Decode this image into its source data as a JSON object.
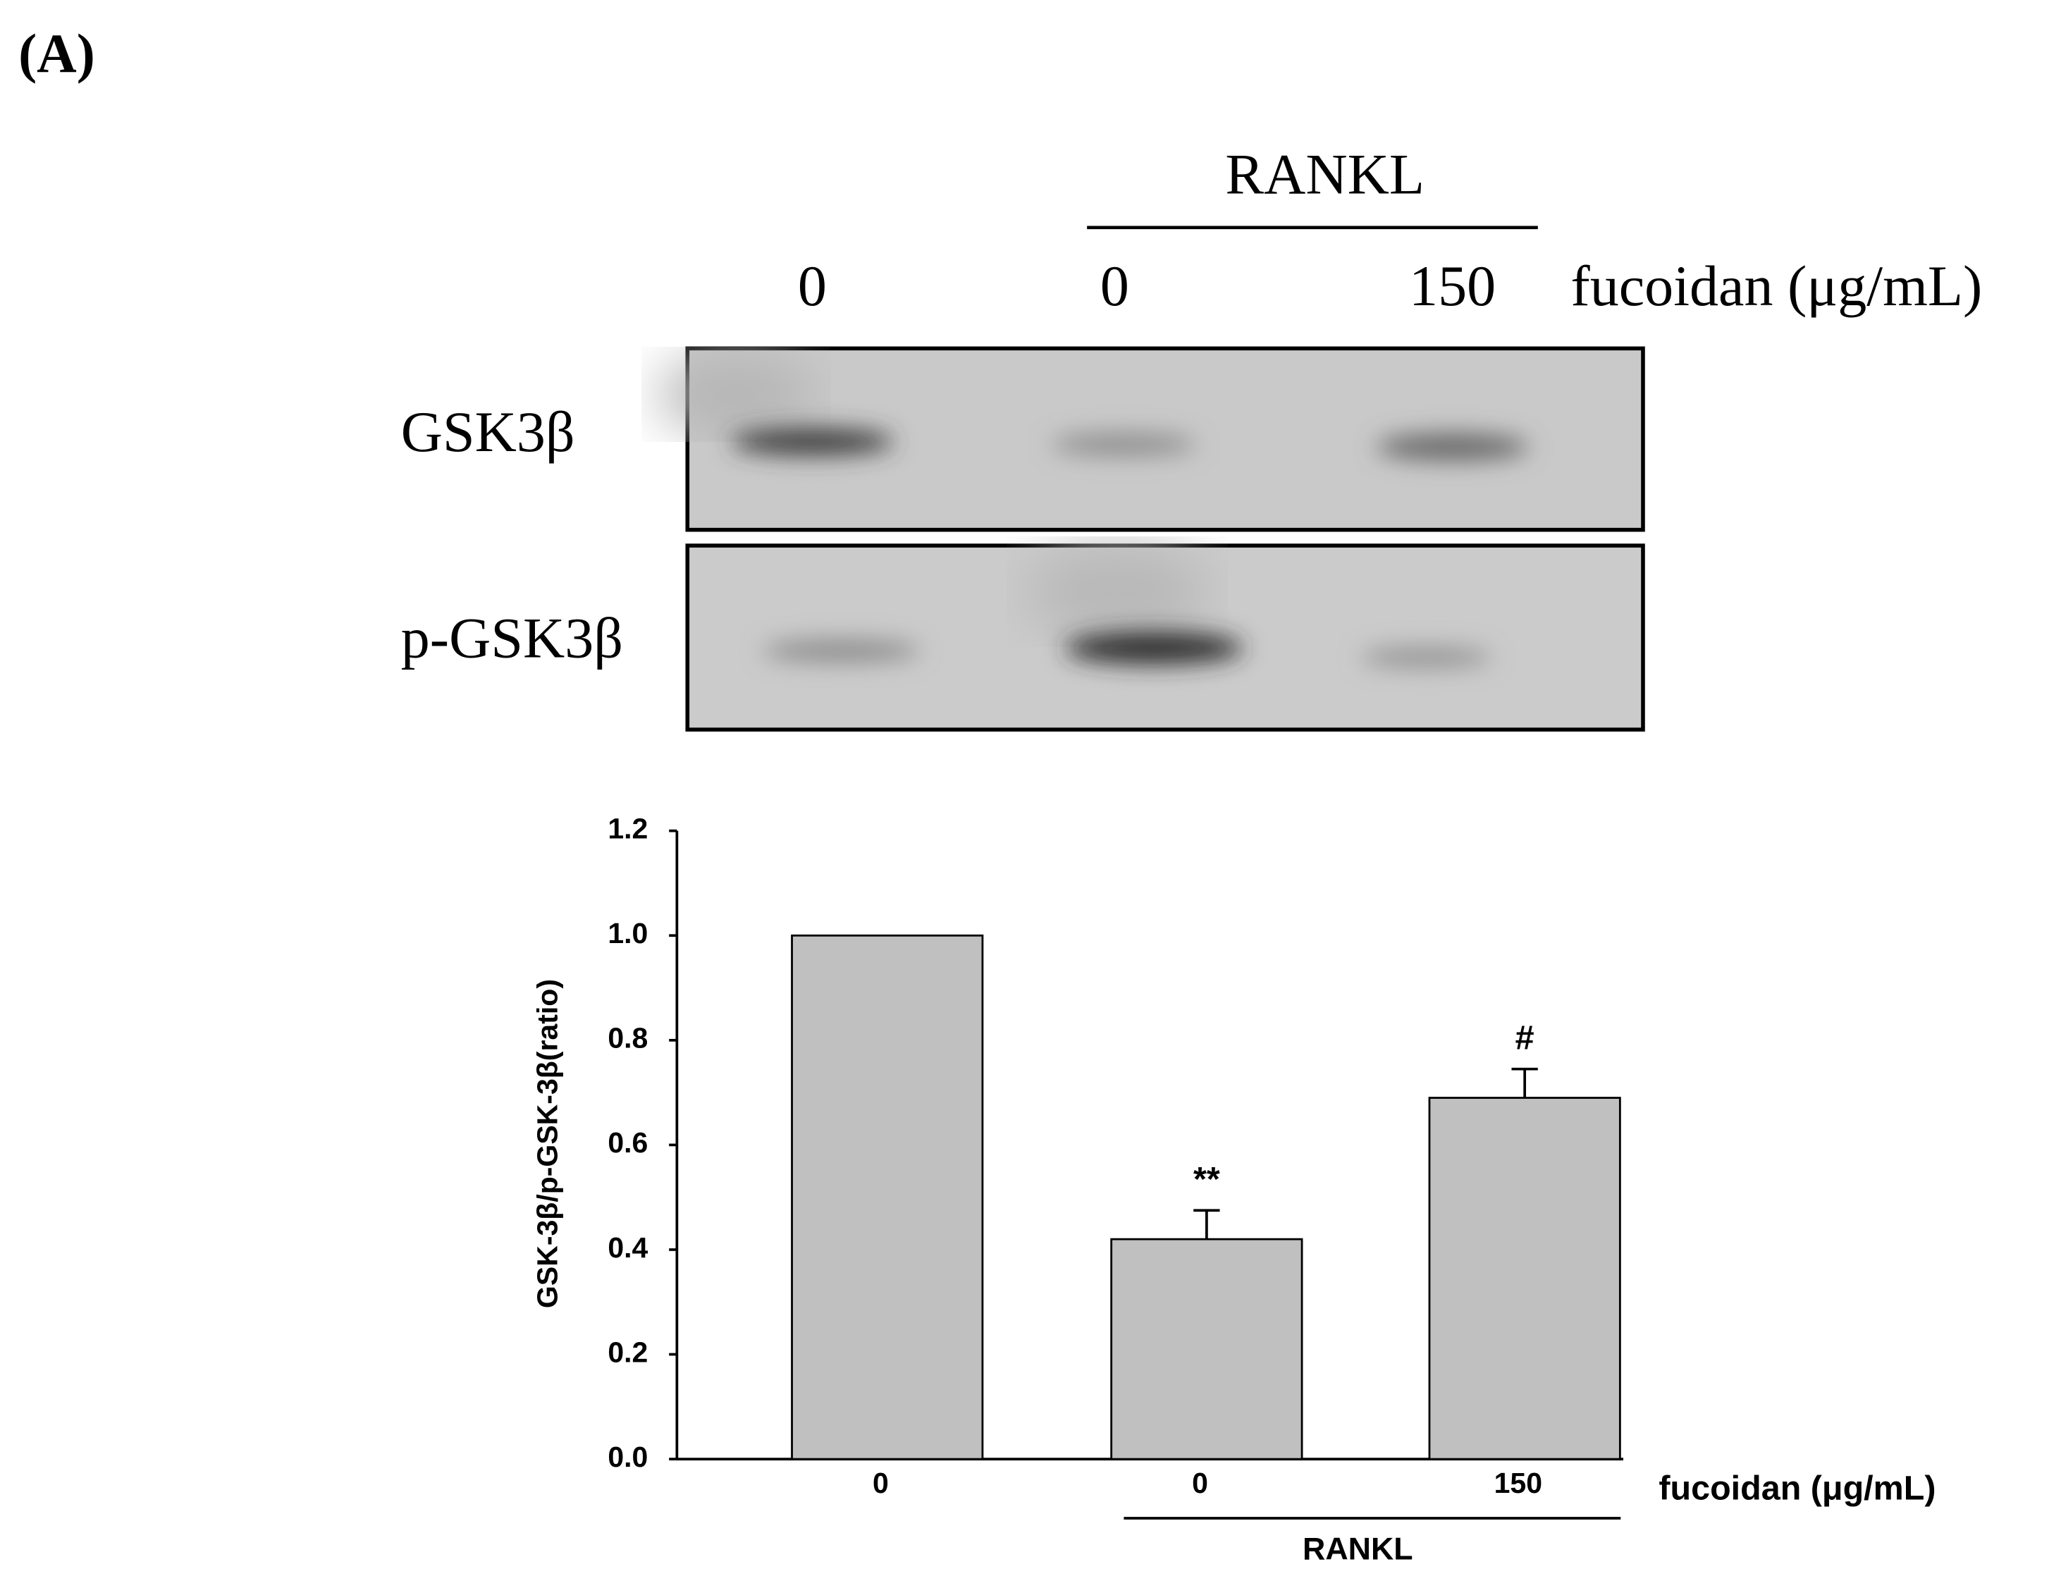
{
  "panel_label": "(A)",
  "blot": {
    "group_label": "RANKL",
    "lanes": [
      "0",
      "0",
      "150"
    ],
    "treatment_label": "fucoidan (μg/mL)",
    "rows": [
      "GSK3β",
      "p-GSK3β"
    ]
  },
  "chart_data": {
    "type": "bar",
    "y_label": "GSK-3β/p-GSK-3β(ratio)",
    "x_label": "fucoidan (μg/mL)",
    "group_label": "RANKL",
    "categories": [
      "0",
      "0",
      "150"
    ],
    "values": [
      1.0,
      0.42,
      0.69
    ],
    "errors": [
      null,
      0.055,
      0.055
    ],
    "annotations": [
      null,
      "**",
      "#"
    ],
    "color": "#c0c0c0",
    "ylim": [
      0,
      1.2
    ],
    "yticks": [
      {
        "value": 0,
        "label": "0.0"
      },
      {
        "value": 0.2,
        "label": "0.2"
      },
      {
        "value": 0.4,
        "label": "0.4"
      },
      {
        "value": 0.6,
        "label": "0.6"
      },
      {
        "value": 0.8,
        "label": "0.8"
      },
      {
        "value": 1,
        "label": "1.0"
      },
      {
        "value": 1.2,
        "label": "1.2"
      }
    ]
  }
}
